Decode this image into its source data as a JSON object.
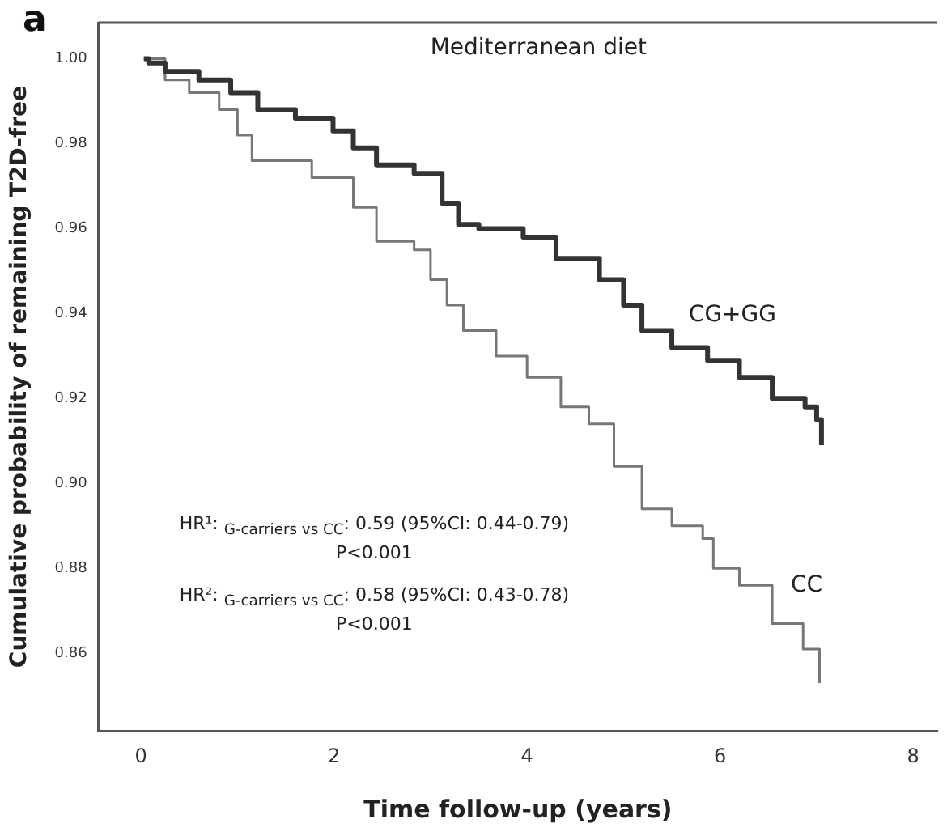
{
  "chart_data": {
    "type": "step",
    "title": "a",
    "xlabel": "Time follow-up (years)",
    "ylabel": "Cumulative probability of remaining T2D-free",
    "xlim": [
      -0.44,
      8.25
    ],
    "ylim": [
      0.8417,
      1.0085
    ],
    "xticks": [
      0,
      2,
      4,
      6,
      8
    ],
    "yticks": [
      {
        "value": 0.86,
        "label": "0.86"
      },
      {
        "value": 0.88,
        "label": "0.88"
      },
      {
        "value": 0.9,
        "label": "0.90"
      },
      {
        "value": 0.92,
        "label": "0.92"
      },
      {
        "value": 0.94,
        "label": "0.94"
      },
      {
        "value": 0.96,
        "label": "0.96"
      },
      {
        "value": 0.98,
        "label": "0.98"
      },
      {
        "value": 1,
        "label": "1.00"
      }
    ],
    "grid": false,
    "legend": false,
    "marker": "none",
    "line_style": "solid",
    "annotations": [
      "Mediterranean diet",
      "HR¹: $_{G-carriers vs CC}$: 0.59 (95%CI: 0.44-0.79)",
      "P<0.001",
      "HR²: $_{G-carriers vs CC}$: 0.58 (95%CI: 0.43-0.78)",
      "P<0.001"
    ],
    "series": [
      {
        "name": "CG+GG",
        "color": "#333333",
        "x": [
          0.03,
          0.08,
          0.25,
          0.6,
          0.93,
          1.21,
          1.6,
          1.99,
          2.2,
          2.44,
          2.83,
          3.12,
          3.29,
          3.5,
          3.96,
          4.3,
          4.75,
          5.0,
          5.19,
          5.5,
          5.87,
          6.2,
          6.54,
          6.88,
          7.0,
          7.05
        ],
        "values": [
          1.0,
          0.999,
          0.997,
          0.995,
          0.992,
          0.988,
          0.986,
          0.983,
          0.979,
          0.975,
          0.973,
          0.966,
          0.961,
          0.96,
          0.958,
          0.953,
          0.948,
          0.942,
          0.936,
          0.932,
          0.929,
          0.925,
          0.92,
          0.918,
          0.915,
          0.909
        ]
      },
      {
        "name": "CC",
        "color": "#777777",
        "x": [
          0.03,
          0.25,
          0.5,
          0.81,
          1.0,
          1.15,
          1.65,
          1.77,
          1.99,
          2.2,
          2.44,
          2.83,
          3.0,
          3.17,
          3.34,
          3.68,
          4.0,
          4.35,
          4.64,
          4.9,
          5.19,
          5.5,
          5.82,
          5.93,
          6.2,
          6.54,
          6.86,
          7.03
        ],
        "values": [
          1.0,
          0.995,
          0.992,
          0.988,
          0.982,
          0.976,
          0.976,
          0.972,
          0.972,
          0.965,
          0.957,
          0.955,
          0.948,
          0.942,
          0.936,
          0.93,
          0.925,
          0.918,
          0.914,
          0.904,
          0.894,
          0.89,
          0.887,
          0.88,
          0.876,
          0.867,
          0.861,
          0.853
        ]
      }
    ]
  }
}
